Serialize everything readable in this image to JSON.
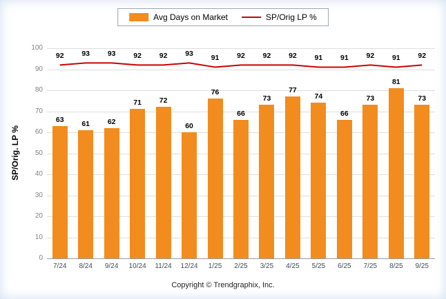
{
  "legend": {
    "bar_label": "Avg Days on Market",
    "line_label": "SP/Orig LP %"
  },
  "footer": {
    "copyright": "Copyright © Trendgraphix, Inc."
  },
  "chart_data": {
    "type": "bar",
    "categories": [
      "7/24",
      "8/24",
      "9/24",
      "10/24",
      "11/24",
      "12/24",
      "1/25",
      "2/25",
      "3/25",
      "4/25",
      "5/25",
      "6/25",
      "7/25",
      "8/25",
      "9/25"
    ],
    "series": [
      {
        "name": "Avg Days on Market",
        "type": "bar",
        "color": "#F28C1E",
        "values": [
          63,
          61,
          62,
          71,
          72,
          60,
          76,
          66,
          73,
          77,
          74,
          66,
          73,
          81,
          73
        ]
      },
      {
        "name": "SP/Orig LP %",
        "type": "line",
        "color": "#CC0000",
        "values": [
          92,
          93,
          93,
          92,
          92,
          93,
          91,
          92,
          92,
          92,
          91,
          91,
          92,
          91,
          92
        ]
      }
    ],
    "title": "",
    "xlabel": "",
    "ylabel": "SP/Orig. LP %",
    "ylim": [
      0,
      100
    ],
    "yticks": [
      0,
      10,
      20,
      30,
      40,
      50,
      60,
      70,
      80,
      90,
      100
    ],
    "grid": true,
    "legend_position": "top"
  }
}
